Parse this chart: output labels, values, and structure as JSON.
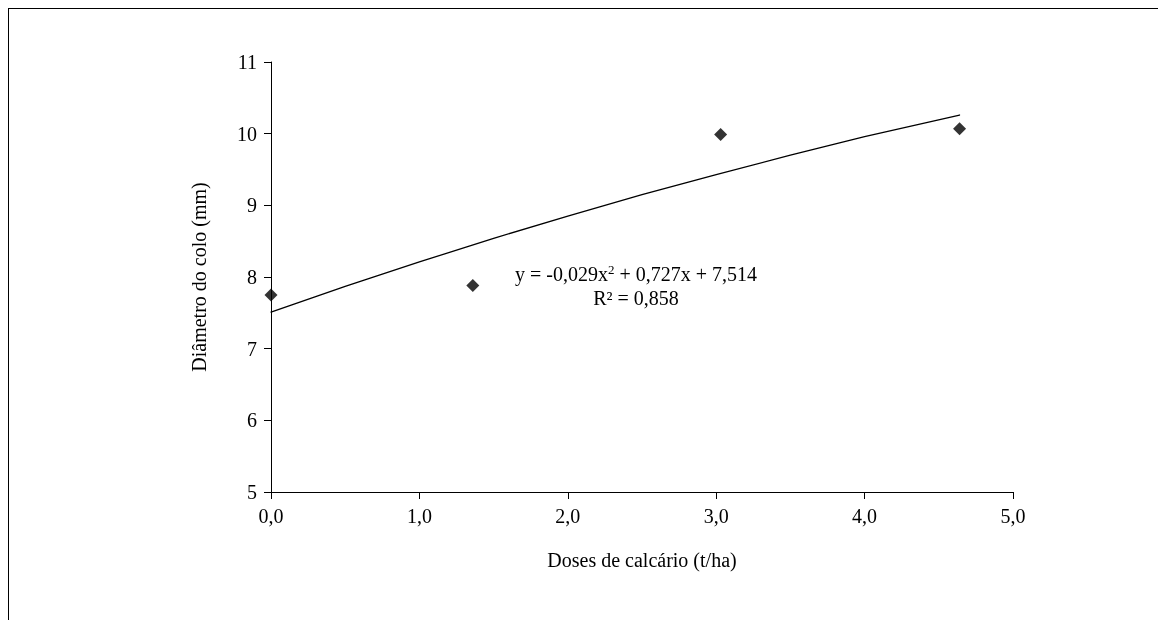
{
  "chart_data": {
    "type": "scatter",
    "xlabel": "Doses de calcário (t/ha)",
    "ylabel": "Diâmetro do colo (mm)",
    "xlim": [
      0,
      5
    ],
    "xticks": [
      {
        "value": 0,
        "label": "0,0"
      },
      {
        "value": 1,
        "label": "1,0"
      },
      {
        "value": 2,
        "label": "2,0"
      },
      {
        "value": 3,
        "label": "3,0"
      },
      {
        "value": 4,
        "label": "4,0"
      },
      {
        "value": 5,
        "label": "5,0"
      }
    ],
    "ylim": [
      5,
      11
    ],
    "yticks": [
      5,
      6,
      7,
      8,
      9,
      10,
      11
    ],
    "grid": false,
    "marker": "diamond",
    "series": [
      {
        "color": "#000000",
        "x": [
          0,
          1.36,
          3.03,
          4.64
        ],
        "values": [
          7.75,
          7.88,
          9.99,
          10.07
        ]
      },
      {
        "type": "line",
        "color": "#000000",
        "line_style": "solid",
        "marker": "none",
        "x": [
          0,
          0.5,
          1,
          1.5,
          2,
          2.5,
          3,
          3.5,
          4,
          4.64
        ],
        "values": [
          7.51,
          7.87,
          8.21,
          8.54,
          8.85,
          9.15,
          9.43,
          9.7,
          9.96,
          10.26
        ]
      }
    ],
    "annotations": [
      "y = -0,029x$^{2}$ + 0,727x + 7,514",
      "R² = 0,858"
    ]
  }
}
